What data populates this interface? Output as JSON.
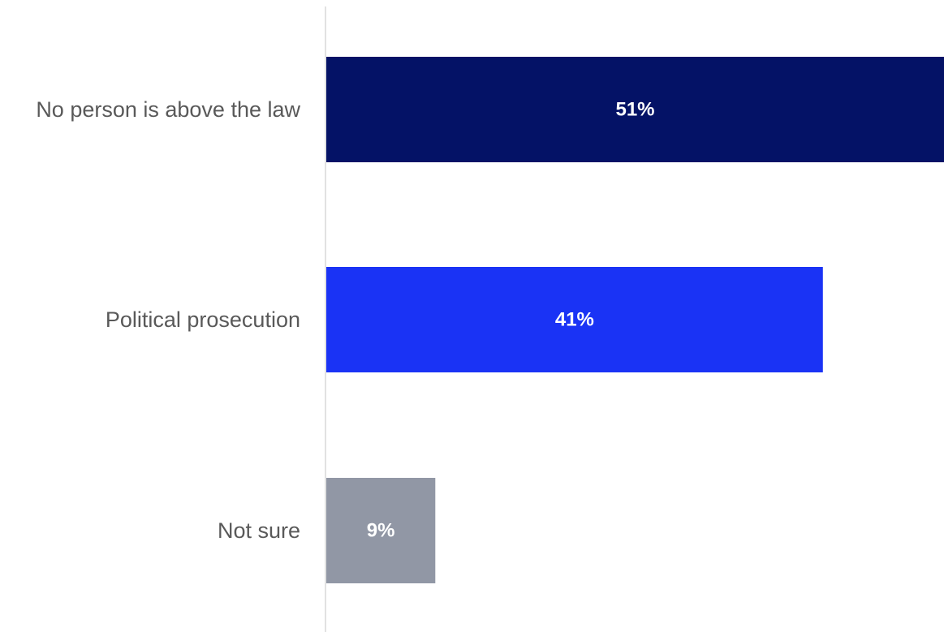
{
  "chart_data": {
    "type": "bar",
    "orientation": "horizontal",
    "categories": [
      "No person is above the law",
      "Political prosecution",
      "Not sure"
    ],
    "values": [
      51,
      41,
      9
    ],
    "value_labels": [
      "51%",
      "41%",
      "9%"
    ],
    "colors": [
      "#041266",
      "#1a33f5",
      "#9197a5"
    ],
    "axis_color": "#d9d9d9",
    "xlim": [
      0,
      51
    ],
    "grid": false,
    "legend": "none"
  }
}
